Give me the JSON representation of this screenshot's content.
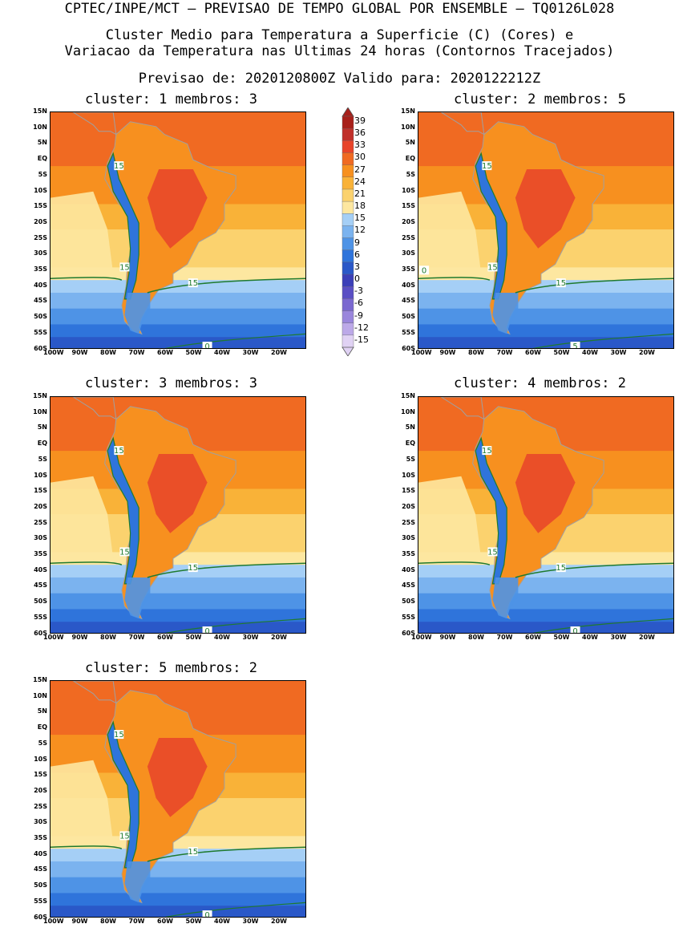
{
  "header": {
    "line1": "CPTEC/INPE/MCT – PREVISAO DE TEMPO GLOBAL POR ENSEMBLE – TQ0126L028",
    "line2": "Cluster Medio para Temperatura a Superficie (C) (Cores) e",
    "line3": "Variacao da Temperatura nas Ultimas 24 horas (Contornos Tracejados)",
    "line4": "Previsao de: 2020120800Z    Valido para: 2020122212Z"
  },
  "colorbar": {
    "labels": [
      "39",
      "36",
      "33",
      "30",
      "27",
      "24",
      "21",
      "18",
      "15",
      "12",
      "9",
      "6",
      "3",
      "0",
      "-3",
      "-6",
      "-9",
      "-12",
      "-15"
    ],
    "colors": [
      "#a8201a",
      "#c0302a",
      "#e8442a",
      "#f06a22",
      "#f7901f",
      "#f9b238",
      "#fbd26e",
      "#fde7a0",
      "#a5cff6",
      "#7bb3ef",
      "#4e93e6",
      "#2f74db",
      "#2a58c8",
      "#3b3fb8",
      "#5a4fc4",
      "#7a68d0",
      "#9a86dc",
      "#bca9e8",
      "#e0d2f4"
    ]
  },
  "axes": {
    "lat_labels": [
      "15N",
      "10N",
      "5N",
      "EQ",
      "5S",
      "10S",
      "15S",
      "20S",
      "25S",
      "30S",
      "35S",
      "40S",
      "45S",
      "50S",
      "55S",
      "60S"
    ],
    "lon_labels": [
      "100W",
      "90W",
      "80W",
      "70W",
      "60W",
      "50W",
      "40W",
      "30W",
      "20W"
    ]
  },
  "panels": [
    {
      "title": "cluster: 1  membros: 3",
      "contour_labels": [
        "15",
        "15",
        "15",
        "0"
      ]
    },
    {
      "title": "cluster: 2  membros: 5",
      "contour_labels": [
        "15",
        "15",
        "15",
        "5",
        "0"
      ]
    },
    {
      "title": "cluster: 3  membros: 3",
      "contour_labels": [
        "15",
        "15",
        "15",
        "0"
      ]
    },
    {
      "title": "cluster: 4  membros: 2",
      "contour_labels": [
        "15",
        "15",
        "15",
        "0"
      ]
    },
    {
      "title": "cluster: 5  membros: 2",
      "contour_labels": [
        "15",
        "15",
        "15",
        "0"
      ]
    }
  ]
}
